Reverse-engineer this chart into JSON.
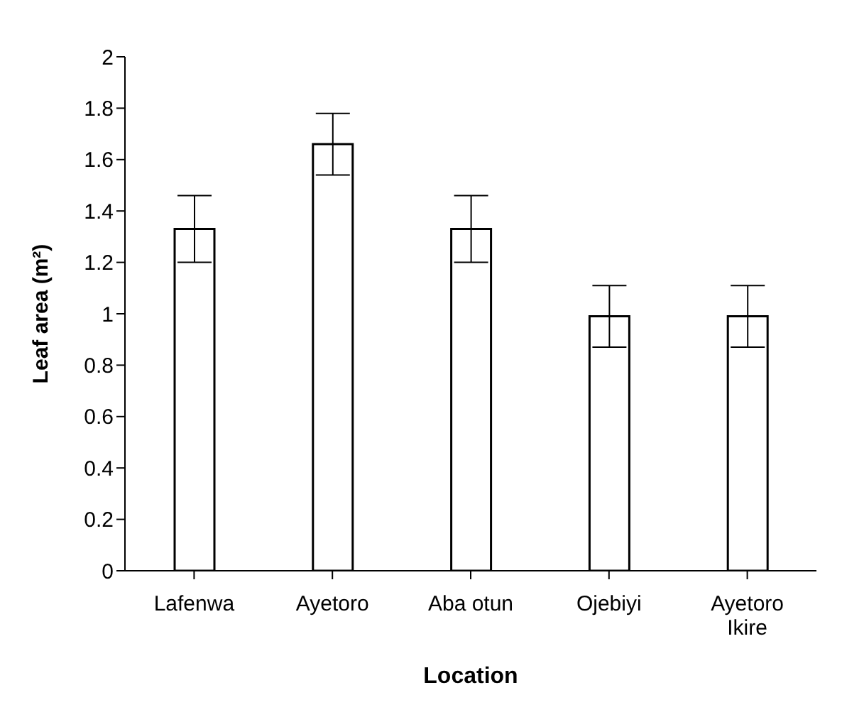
{
  "chart_data": {
    "type": "bar",
    "xlabel": "Location",
    "ylabel": "Leaf area (m²)",
    "categories": [
      "Lafenwa",
      "Ayetoro",
      "Aba otun",
      "Ojebiyi",
      "Ayetoro Ikire"
    ],
    "values": [
      1.33,
      1.66,
      1.33,
      0.99,
      0.99
    ],
    "errors": [
      0.13,
      0.12,
      0.13,
      0.12,
      0.12
    ],
    "color": "#ffffff",
    "ylim": [
      0,
      2
    ],
    "yticks": [
      0,
      0.2,
      0.4,
      0.6,
      0.8,
      1,
      1.2,
      1.4,
      1.6,
      1.8,
      2
    ]
  }
}
